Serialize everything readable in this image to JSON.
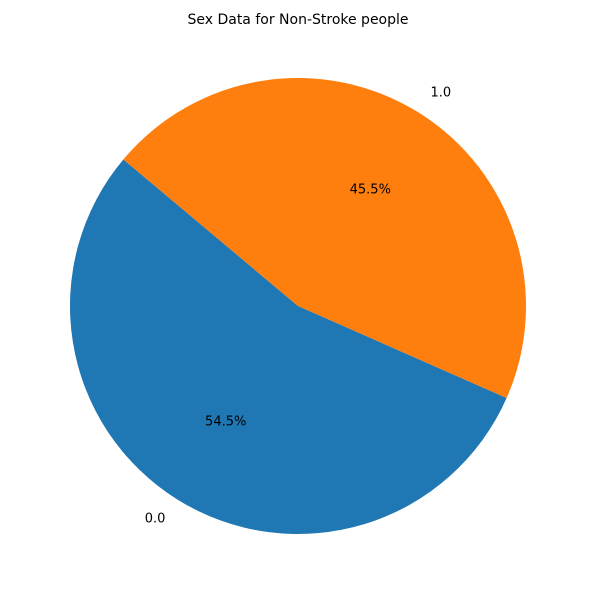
{
  "chart_data": {
    "type": "pie",
    "title": "Sex Data for Non-Stroke people",
    "categories": [
      "0.0",
      "1.0"
    ],
    "values": [
      54.5,
      45.5
    ],
    "value_labels": [
      "54.5%",
      "45.5%"
    ],
    "colors": [
      "#1f77b4",
      "#ff7f0e"
    ],
    "start_angle_deg": 140,
    "direction": "counterclockwise",
    "legend": "none"
  }
}
